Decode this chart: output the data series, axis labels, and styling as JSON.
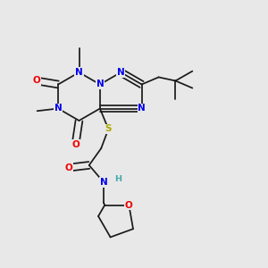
{
  "bg_color": "#e8e8e8",
  "bond_color": "#1a1a1a",
  "N_color": "#0000ee",
  "O_color": "#ee0000",
  "S_color": "#aaaa00",
  "H_color": "#44aaaa",
  "font_size": 7.5,
  "font_size_h": 6.8,
  "line_width": 1.25,
  "dbo": 0.013,
  "figsize": [
    3.0,
    3.0
  ],
  "dpi": 100,
  "xlim": [
    0.0,
    1.0
  ],
  "ylim": [
    0.0,
    1.0
  ]
}
